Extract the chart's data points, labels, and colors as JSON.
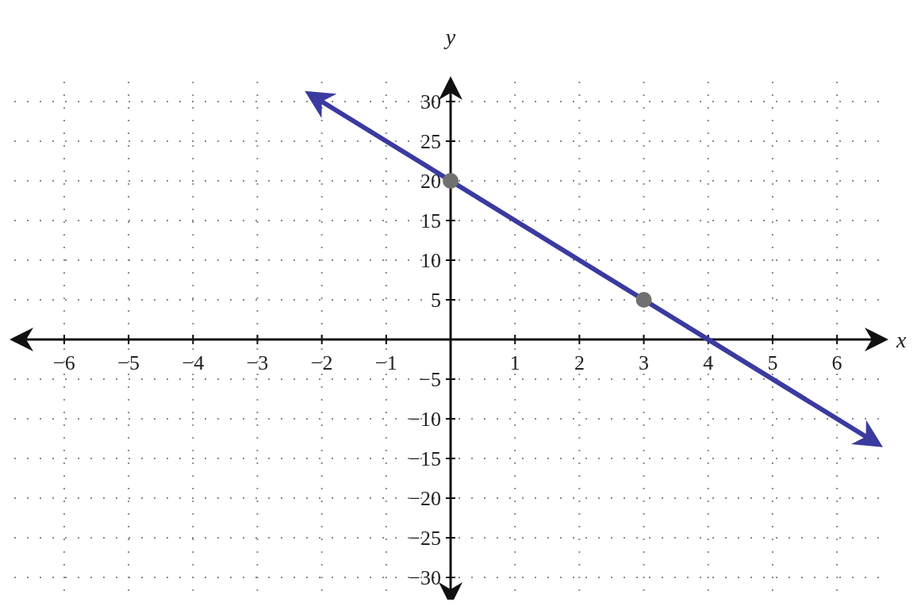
{
  "chart_data": {
    "type": "line",
    "xlabel": "x",
    "ylabel": "y",
    "xlim": [
      -6.8,
      6.75
    ],
    "ylim": [
      -33.2,
      32.8
    ],
    "xticks": [
      {
        "value": -6,
        "label": "−6"
      },
      {
        "value": -5,
        "label": "−5"
      },
      {
        "value": -4,
        "label": "−4"
      },
      {
        "value": -3,
        "label": "−3"
      },
      {
        "value": -2,
        "label": "−2"
      },
      {
        "value": -1,
        "label": "−1"
      },
      1,
      2,
      3,
      4,
      5,
      6
    ],
    "yticks": [
      {
        "value": -30,
        "label": "−30"
      },
      {
        "value": -25,
        "label": "−25"
      },
      {
        "value": -20,
        "label": "−20"
      },
      {
        "value": -15,
        "label": "−15"
      },
      {
        "value": -10,
        "label": "−10"
      },
      {
        "value": -5,
        "label": "−5"
      },
      5,
      10,
      15,
      20,
      25,
      30
    ],
    "grid": true,
    "series": [
      {
        "color": "#3a3aa0",
        "x": [
          -2,
          6.6
        ],
        "values": [
          30,
          -13
        ],
        "marker": "none",
        "line_style": "solid"
      },
      {
        "type": "scatter",
        "color": "#707070",
        "x": [
          0,
          3
        ],
        "values": [
          20,
          5
        ],
        "marker": "circle"
      }
    ]
  }
}
